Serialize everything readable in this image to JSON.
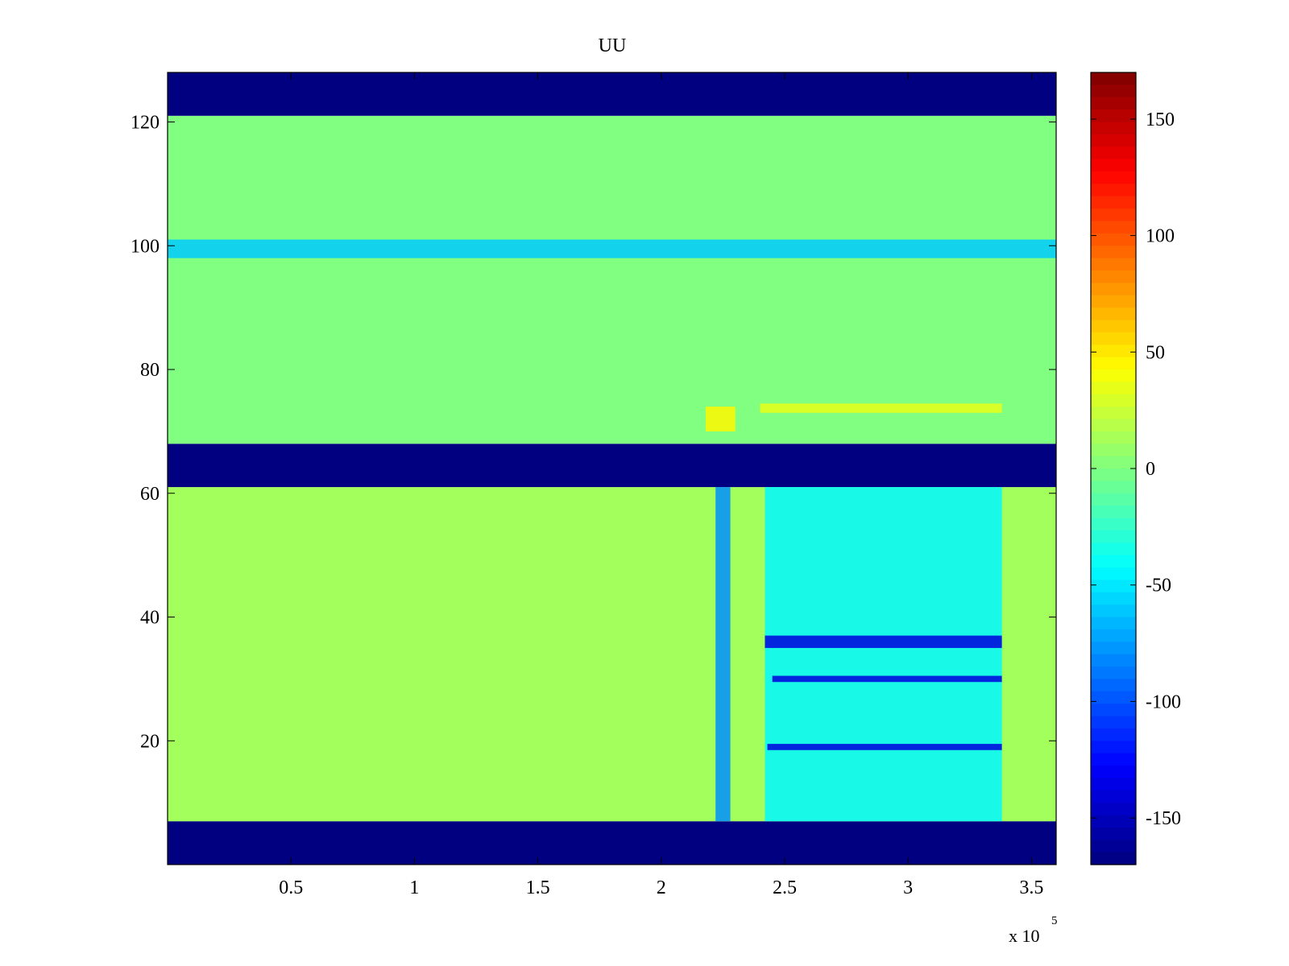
{
  "chart_data": {
    "type": "heatmap",
    "title": "UU",
    "xlabel": "",
    "ylabel": "",
    "x_multiplier_label": "x 10",
    "x_multiplier_exponent": "5",
    "xlim": [
      0,
      360000
    ],
    "ylim": [
      0,
      128
    ],
    "x_ticks": [
      50000,
      100000,
      150000,
      200000,
      250000,
      300000,
      350000
    ],
    "x_tick_labels": [
      "0.5",
      "1",
      "1.5",
      "2",
      "2.5",
      "3",
      "3.5"
    ],
    "y_ticks": [
      20,
      40,
      60,
      80,
      100,
      120
    ],
    "y_tick_labels": [
      "20",
      "40",
      "60",
      "80",
      "100",
      "120"
    ],
    "colormap": "jet",
    "clim": [
      -170,
      170
    ],
    "colorbar_ticks": [
      150,
      100,
      50,
      0,
      -50,
      -100,
      -150
    ],
    "colorbar_tick_labels": [
      "150",
      "100",
      "50",
      "0",
      "-50",
      "-100",
      "-150"
    ],
    "grid": false,
    "regions": [
      {
        "y_range": [
          0,
          7
        ],
        "value": -170
      },
      {
        "y_range": [
          7,
          61
        ],
        "value": 12
      },
      {
        "y_range": [
          61,
          68
        ],
        "value": -170
      },
      {
        "y_range": [
          68,
          121
        ],
        "value": 0
      },
      {
        "y_range": [
          121,
          128
        ],
        "value": -170
      }
    ],
    "features": [
      {
        "x_range": [
          222000,
          228000
        ],
        "y_range": [
          7,
          61
        ],
        "value": -80
      },
      {
        "x_range": [
          242000,
          338000
        ],
        "y_range": [
          7,
          61
        ],
        "value": -45
      },
      {
        "x_range": [
          242000,
          338000
        ],
        "y_range": [
          35,
          37
        ],
        "value": -140
      },
      {
        "x_range": [
          245000,
          338000
        ],
        "y_range": [
          29.5,
          30.5
        ],
        "value": -140
      },
      {
        "x_range": [
          243000,
          338000
        ],
        "y_range": [
          18.5,
          19.5
        ],
        "value": -140
      },
      {
        "x_range": [
          218000,
          230000
        ],
        "y_range": [
          70,
          74
        ],
        "value": 45
      },
      {
        "x_range": [
          240000,
          338000
        ],
        "y_range": [
          73,
          74.5
        ],
        "value": 35
      },
      {
        "x_range": [
          0,
          360000
        ],
        "y_range": [
          98,
          101
        ],
        "value": -60
      }
    ]
  }
}
